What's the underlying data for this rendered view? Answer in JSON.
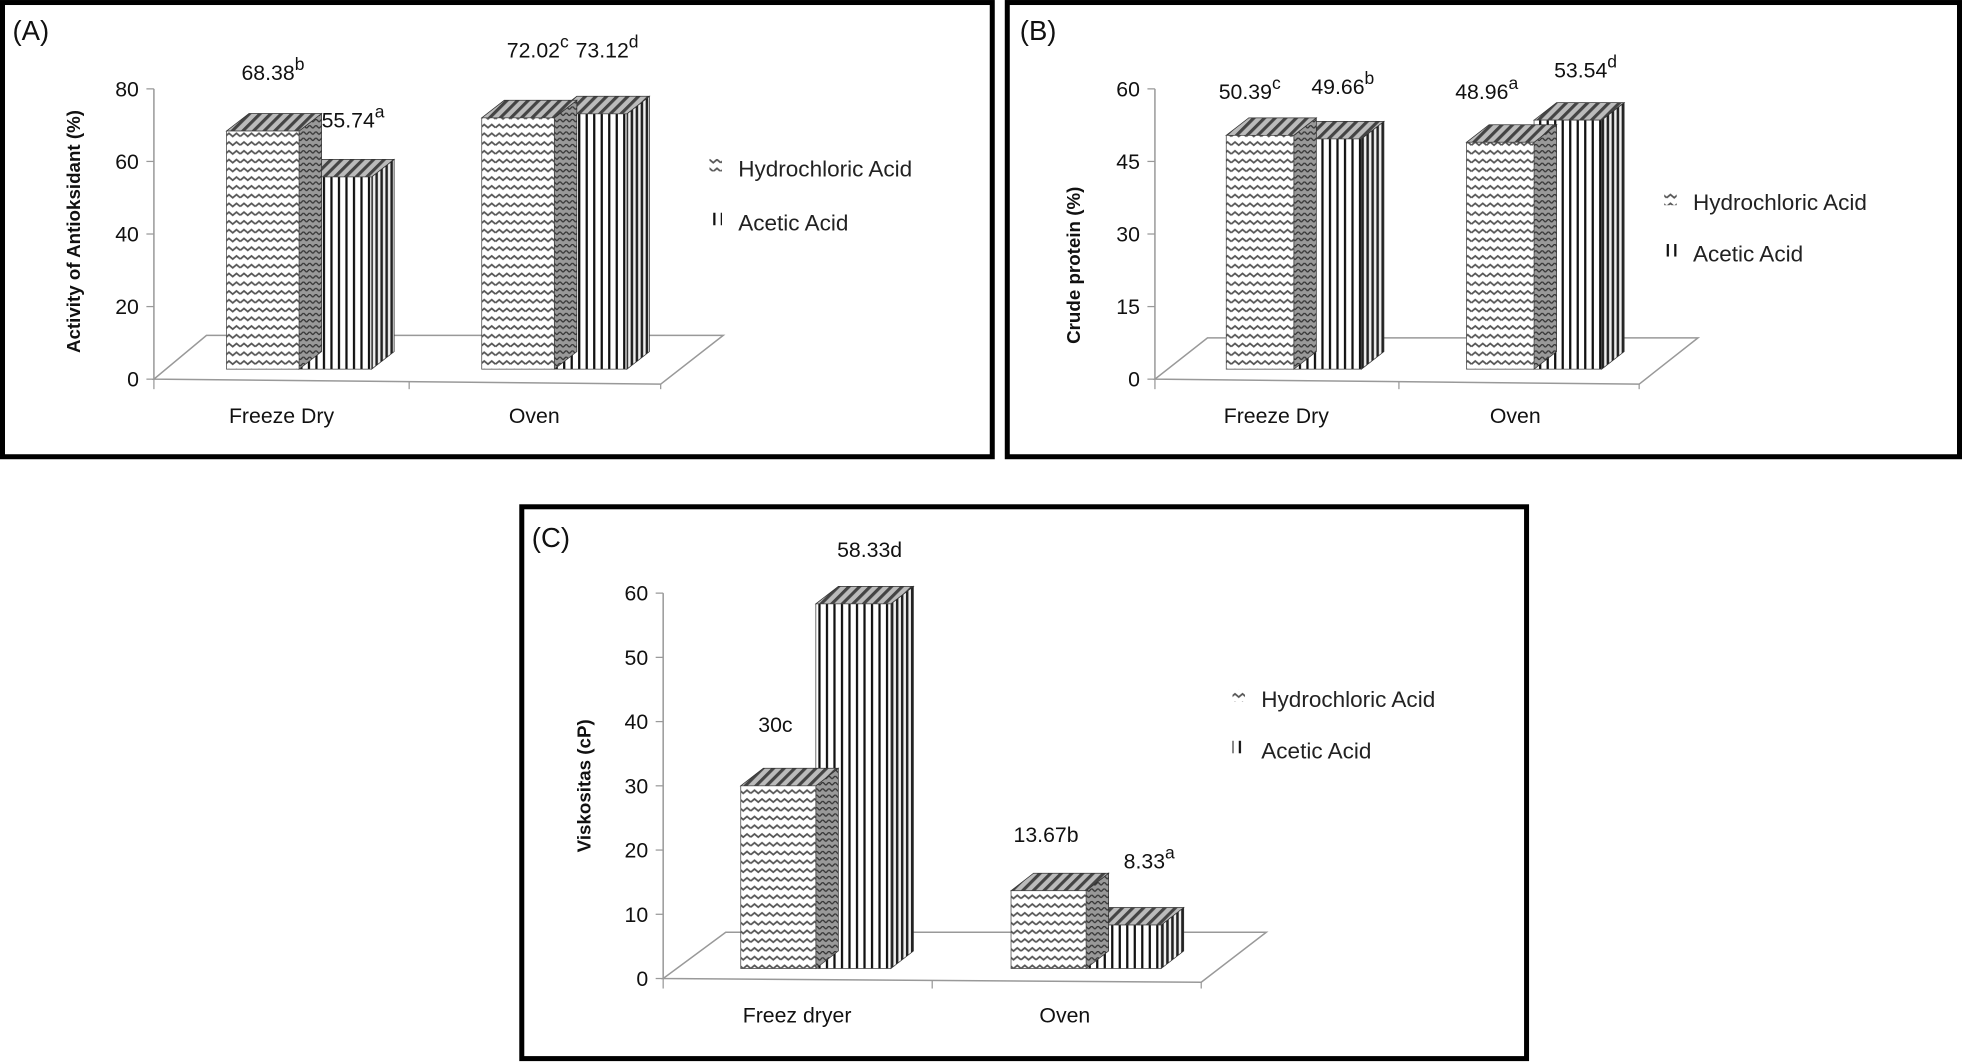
{
  "chart_data": [
    {
      "type": "bar",
      "panel_label": "(A)",
      "title": "",
      "ylabel": "Activity of Antioksidant  (%)",
      "xlabel": "",
      "ylim": [
        0,
        80
      ],
      "yticks": [
        "0",
        "20",
        "40",
        "60",
        "80"
      ],
      "categories": [
        "Freeze Dry",
        "Oven"
      ],
      "series": [
        {
          "name": "Hydrochloric Acid",
          "values": [
            68.38,
            72.02
          ],
          "labels": [
            "68.38",
            "72.02"
          ],
          "letters": [
            "b",
            "c"
          ]
        },
        {
          "name": "Acetic Acid",
          "values": [
            55.74,
            73.12
          ],
          "labels": [
            "55.74",
            "73.12"
          ],
          "letters": [
            "a",
            "d"
          ]
        }
      ],
      "legend_position": "right",
      "style": "3d-clustered-column"
    },
    {
      "type": "bar",
      "panel_label": "(B)",
      "title": "",
      "ylabel": "Crude protein (%)",
      "xlabel": "",
      "ylim": [
        0,
        60
      ],
      "yticks": [
        "0",
        "15",
        "30",
        "45",
        "60"
      ],
      "categories": [
        "Freeze Dry",
        "Oven"
      ],
      "series": [
        {
          "name": "Hydrochloric Acid",
          "values": [
            50.39,
            48.96
          ],
          "labels": [
            "50.39",
            "48.96"
          ],
          "letters": [
            "c",
            "a"
          ]
        },
        {
          "name": "Acetic Acid",
          "values": [
            49.66,
            53.54
          ],
          "labels": [
            "49.66",
            "53.54"
          ],
          "letters": [
            "b",
            "d"
          ]
        }
      ],
      "legend_position": "right",
      "style": "3d-clustered-column"
    },
    {
      "type": "bar",
      "panel_label": "(C)",
      "title": "",
      "ylabel": "Viskositas  (cP)",
      "xlabel": "",
      "ylim": [
        0,
        60
      ],
      "yticks": [
        "0",
        "10",
        "20",
        "30",
        "40",
        "50",
        "60"
      ],
      "categories": [
        "Freez dryer",
        "Oven"
      ],
      "series": [
        {
          "name": "Hydrochloric Acid",
          "values": [
            30,
            13.67
          ],
          "labels": [
            "30c",
            "13.67b"
          ],
          "letters": [
            "",
            ""
          ]
        },
        {
          "name": "Acetic Acid",
          "values": [
            58.33,
            8.33
          ],
          "labels": [
            "58.33d",
            "8.33"
          ],
          "letters": [
            "",
            "a"
          ]
        }
      ],
      "legend_position": "right",
      "style": "3d-clustered-column"
    }
  ]
}
